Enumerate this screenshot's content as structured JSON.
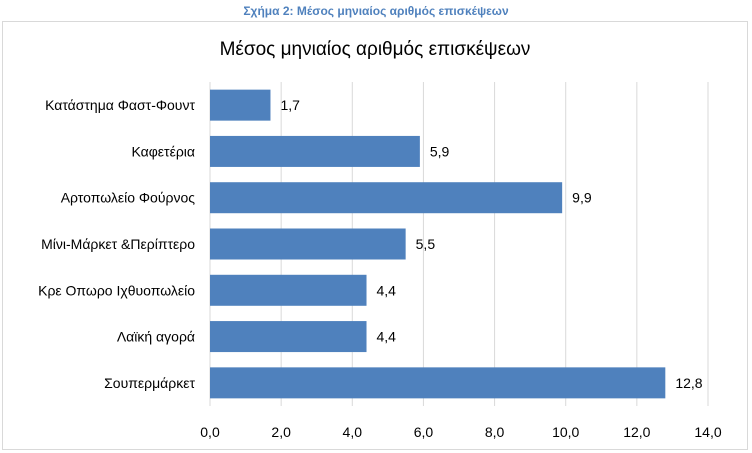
{
  "caption": "Σχήμα 2: Μέσος μηνιαίος αριθμός επισκέψεων",
  "colors": {
    "bar": "#4f81bd",
    "grid": "#d9d9d9",
    "caption": "#4f81bd"
  },
  "chart_data": {
    "type": "bar",
    "orientation": "horizontal",
    "title": "Μέσος μηνιαίος αριθμός επισκέψεων",
    "categories": [
      "Κατάστημα Φαστ-Φουντ",
      "Καφετέρια",
      "Αρτοπωλείο Φούρνος",
      "Μίνι-Μάρκετ &Περίπτερο",
      "Κρε Οπωρο Ιχθυοπωλείο",
      "Λαϊκή αγορά",
      "Σουπερμάρκετ"
    ],
    "values": [
      1.7,
      5.9,
      9.9,
      5.5,
      4.4,
      4.4,
      12.8
    ],
    "data_labels": [
      "1,7",
      "5,9",
      "9,9",
      "5,5",
      "4,4",
      "4,4",
      "12,8"
    ],
    "xlim": [
      0,
      14
    ],
    "xticks": [
      0,
      2,
      4,
      6,
      8,
      10,
      12,
      14
    ],
    "xtick_labels": [
      "0,0",
      "2,0",
      "4,0",
      "6,0",
      "8,0",
      "10,0",
      "12,0",
      "14,0"
    ],
    "grid": "vertical",
    "legend": "none"
  }
}
